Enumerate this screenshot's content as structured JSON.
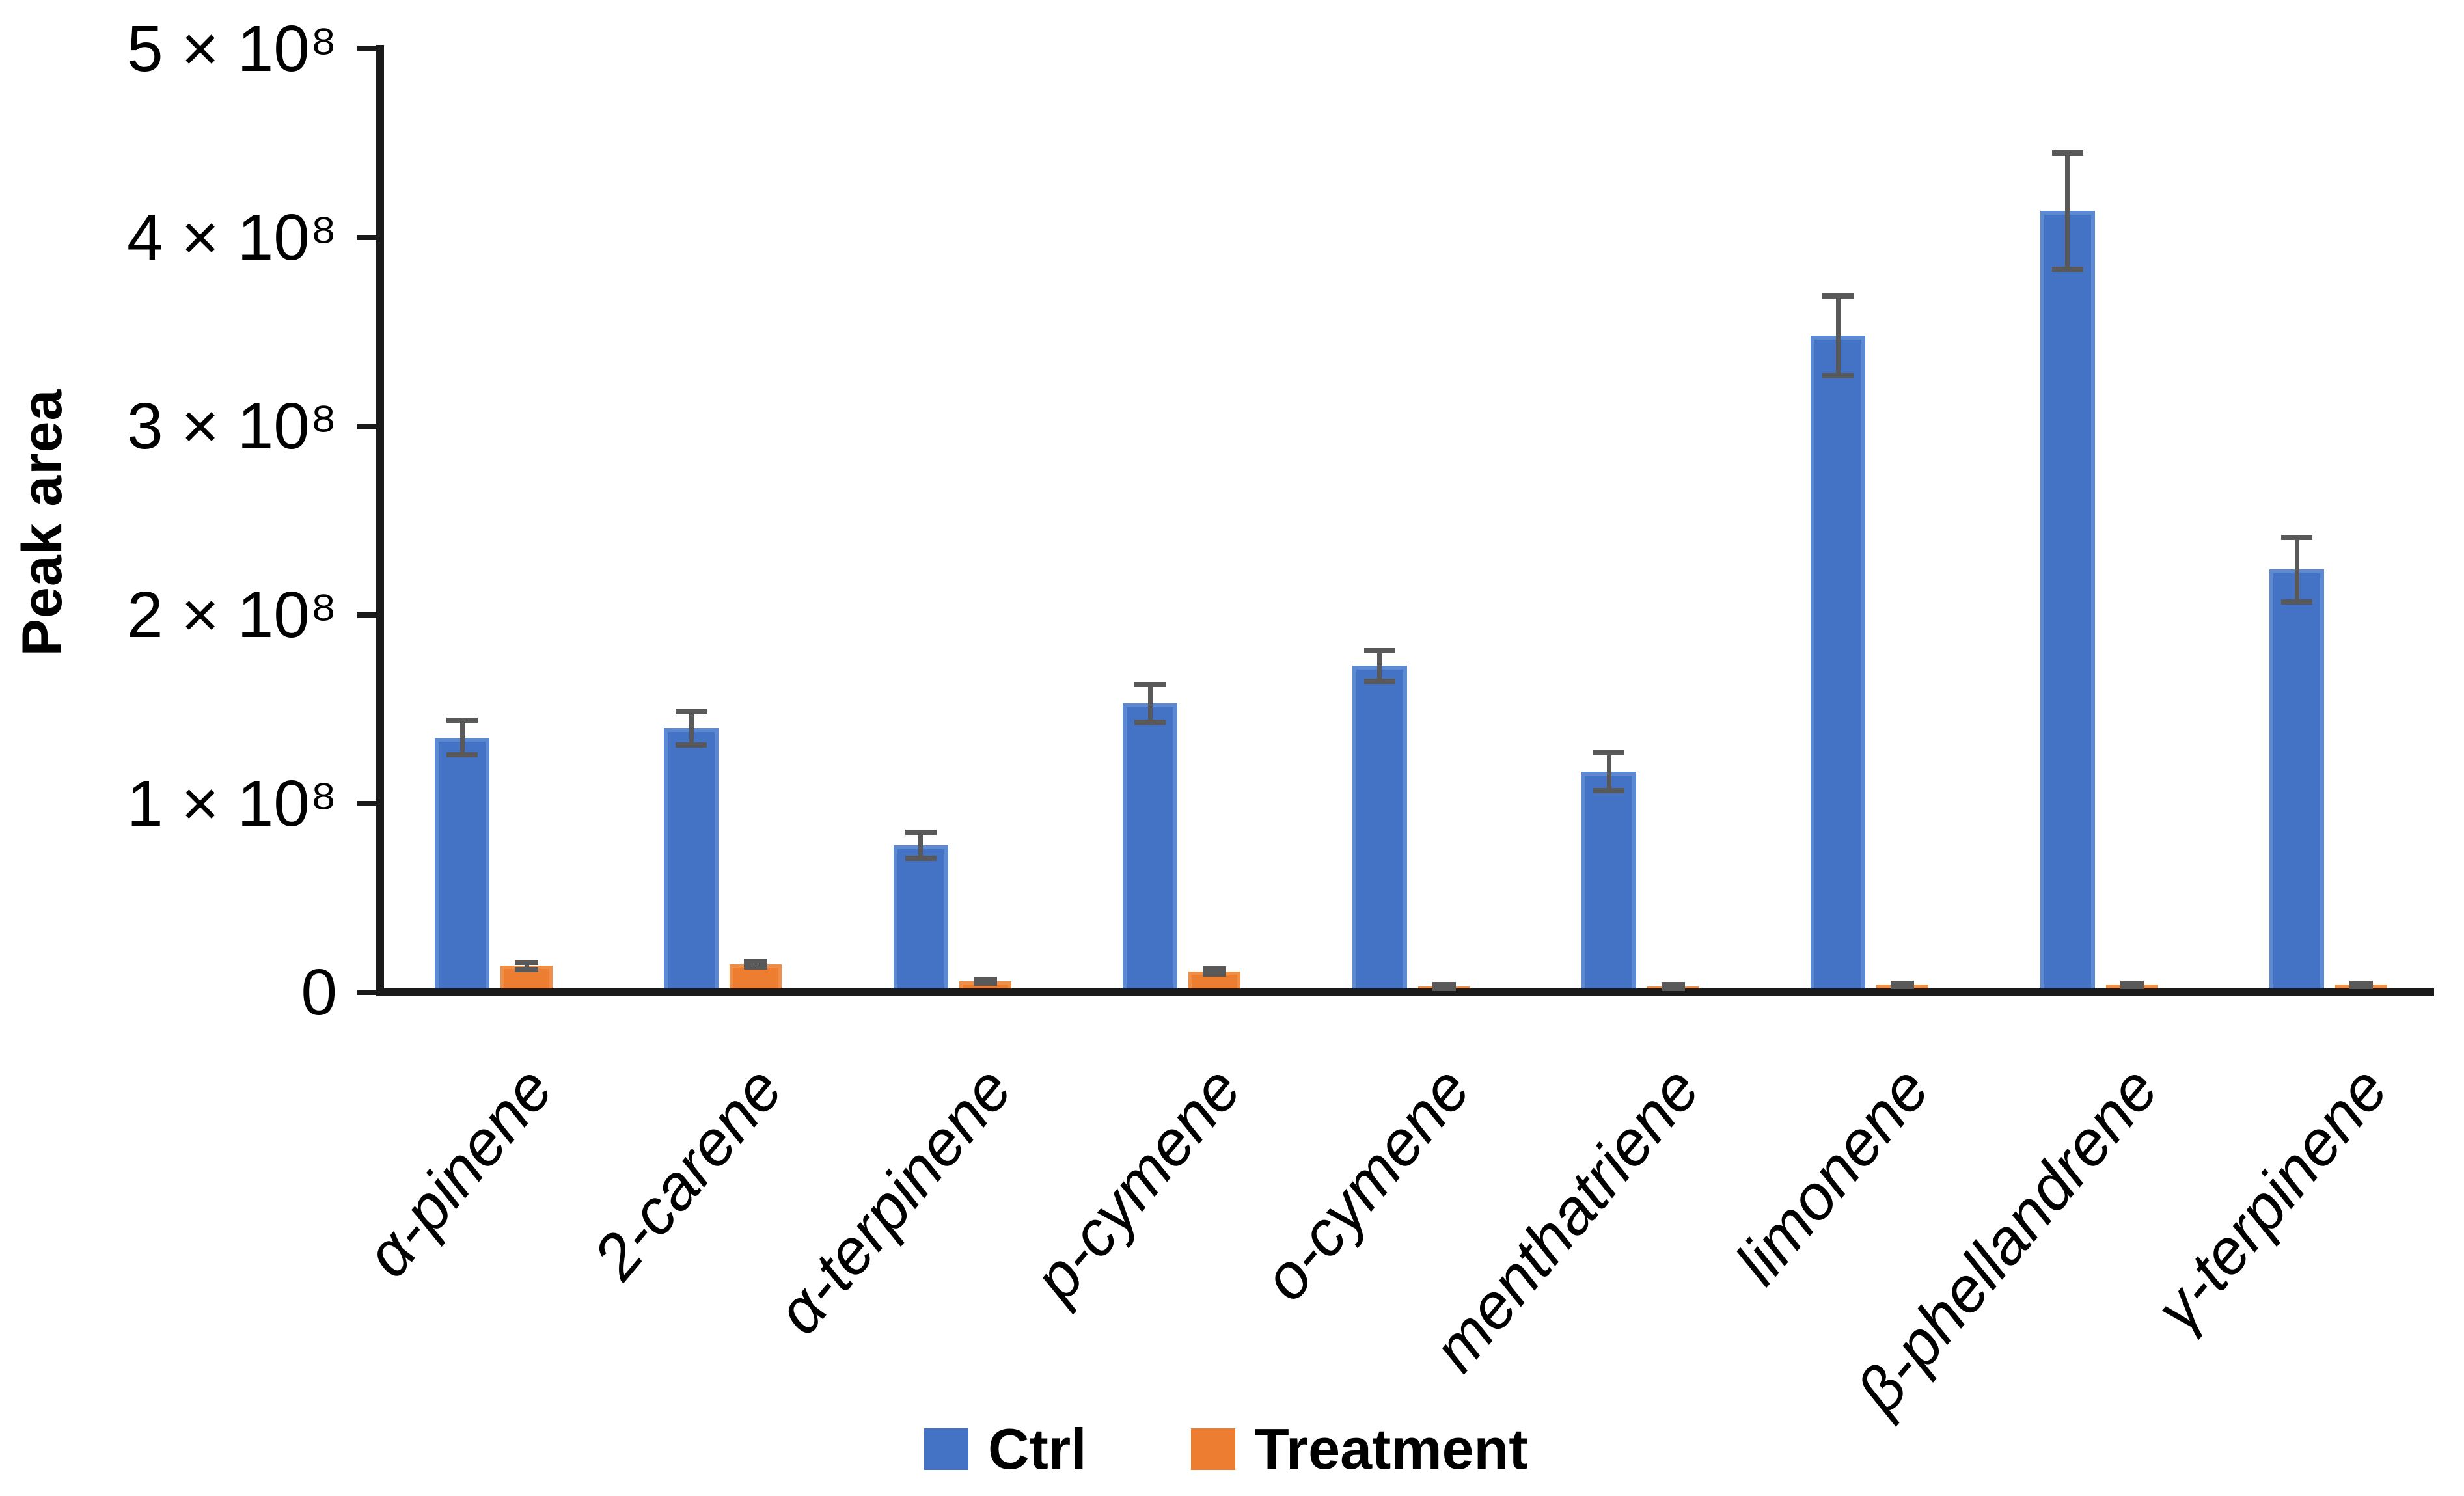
{
  "figure": {
    "background": "#ffffff"
  },
  "y_axis": {
    "title": "Peak area",
    "tick_labels": [
      "0",
      "1 × 10⁸",
      "2 × 10⁸",
      "3 × 10⁸",
      "4 × 10⁸",
      "5 × 10⁸"
    ]
  },
  "legend": {
    "items": [
      {
        "label": "Ctrl",
        "color": "#4472C4"
      },
      {
        "label": "Treatment",
        "color": "#ED7D31"
      }
    ]
  },
  "chart_data": {
    "type": "bar",
    "title": "",
    "xlabel": "",
    "ylabel": "Peak area",
    "value_unit": "1e8 (axis shown as n × 10⁸)",
    "ylim_e8": [
      0,
      5
    ],
    "y_tick_step_e8": 1,
    "grid": false,
    "legend_position": "bottom",
    "error_bar_color": "#595959",
    "categories": [
      "α-pinene",
      "2-carene",
      "α-terpinene",
      "p-cymene",
      "o-cymene",
      "menthatriene",
      "limonene",
      "β-phellandrene",
      "γ-terpinene"
    ],
    "series": [
      {
        "name": "Ctrl",
        "color": "#4472C4",
        "values_e8": [
          1.35,
          1.4,
          0.78,
          1.53,
          1.73,
          1.17,
          3.48,
          4.14,
          2.24
        ],
        "errors_e8": [
          0.09,
          0.09,
          0.07,
          0.1,
          0.08,
          0.1,
          0.21,
          0.31,
          0.17
        ]
      },
      {
        "name": "Treatment",
        "color": "#ED7D31",
        "values_e8": [
          0.14,
          0.15,
          0.06,
          0.11,
          0.03,
          0.03,
          0.04,
          0.04,
          0.04
        ],
        "errors_e8": [
          0.02,
          0.015,
          0.01,
          0.015,
          0.01,
          0.01,
          0.01,
          0.01,
          0.01
        ]
      }
    ]
  }
}
